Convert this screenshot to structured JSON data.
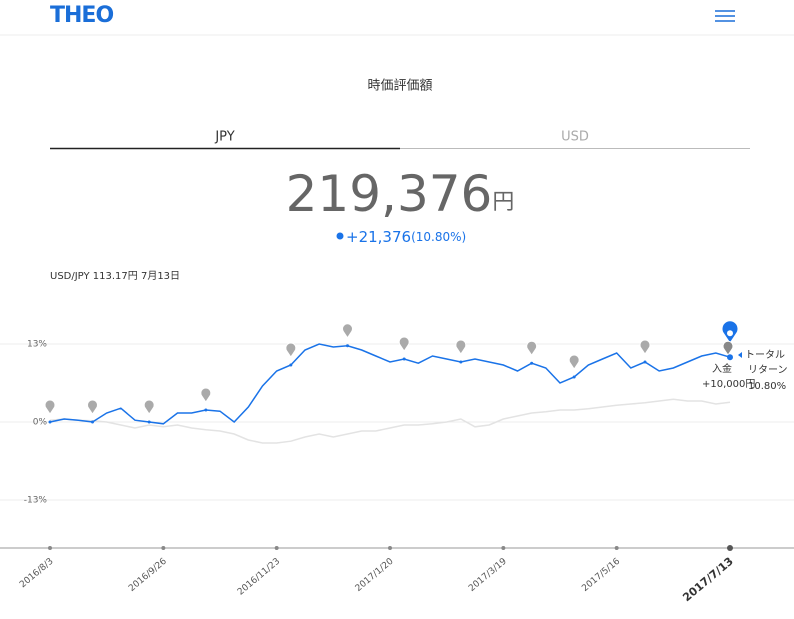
{
  "header": {
    "logo": "THEO"
  },
  "summary": {
    "title": "時価評価額",
    "tabs": [
      "JPY",
      "USD"
    ],
    "amount": "219,376",
    "unit": "円",
    "change": "+21,376",
    "change_pct": "(10.80%)",
    "fx": "USD/JPY 113.17円 7月13日"
  },
  "chart_data": {
    "type": "line",
    "categories": [
      "2016/8/3",
      null,
      null,
      null,
      null,
      null,
      null,
      null,
      "2016/9/26",
      null,
      null,
      null,
      null,
      null,
      null,
      null,
      "2016/11/23",
      null,
      null,
      null,
      null,
      null,
      null,
      null,
      "2017/1/20",
      null,
      null,
      null,
      null,
      null,
      null,
      null,
      "2017/3/19",
      null,
      null,
      null,
      null,
      null,
      null,
      null,
      "2017/5/16",
      null,
      null,
      null,
      null,
      null,
      null,
      null,
      "2017/7/13"
    ],
    "series": [
      {
        "color": "#1a73e8",
        "values": [
          0,
          0.5,
          0.3,
          0,
          1.5,
          2.3,
          0.3,
          0,
          -0.3,
          1.5,
          1.5,
          2,
          1.8,
          0,
          2.5,
          6,
          8.5,
          9.5,
          12,
          13,
          12.5,
          12.7,
          12,
          11,
          10,
          10.5,
          9.8,
          11,
          10.5,
          10,
          10.5,
          10,
          9.5,
          8.5,
          9.8,
          9,
          6.5,
          7.5,
          9.5,
          10.5,
          11.5,
          9,
          10,
          8.5,
          9,
          10,
          11,
          11.5,
          10.8
        ]
      },
      {
        "color": "#e3e3e3",
        "values": [
          0.3,
          0.5,
          0.3,
          0.2,
          0,
          -0.5,
          -1,
          -0.5,
          -0.8,
          -0.5,
          -1,
          -1.3,
          -1.5,
          -2,
          -3,
          -3.5,
          -3.5,
          -3.2,
          -2.5,
          -2,
          -2.5,
          -2,
          -1.5,
          -1.5,
          -1,
          -0.5,
          -0.5,
          -0.3,
          0,
          0.5,
          -0.8,
          -0.5,
          0.5,
          1,
          1.5,
          1.7,
          2,
          2,
          2.2,
          2.5,
          2.8,
          3,
          3.2,
          3.5,
          3.8,
          3.5,
          3.5,
          3,
          3.3
        ]
      }
    ],
    "ylim": [
      -21,
      19
    ],
    "yticks": [
      {
        "value": 13,
        "label": "13%"
      },
      {
        "value": 0,
        "label": "0%"
      },
      {
        "value": -13,
        "label": "-13%"
      }
    ],
    "grid": true,
    "annotations": {
      "total_return": {
        "label": [
          "トータル",
          "リターン"
        ],
        "value": "10.80%"
      },
      "deposit": {
        "label": "入金",
        "value": "+10,000円"
      }
    }
  }
}
